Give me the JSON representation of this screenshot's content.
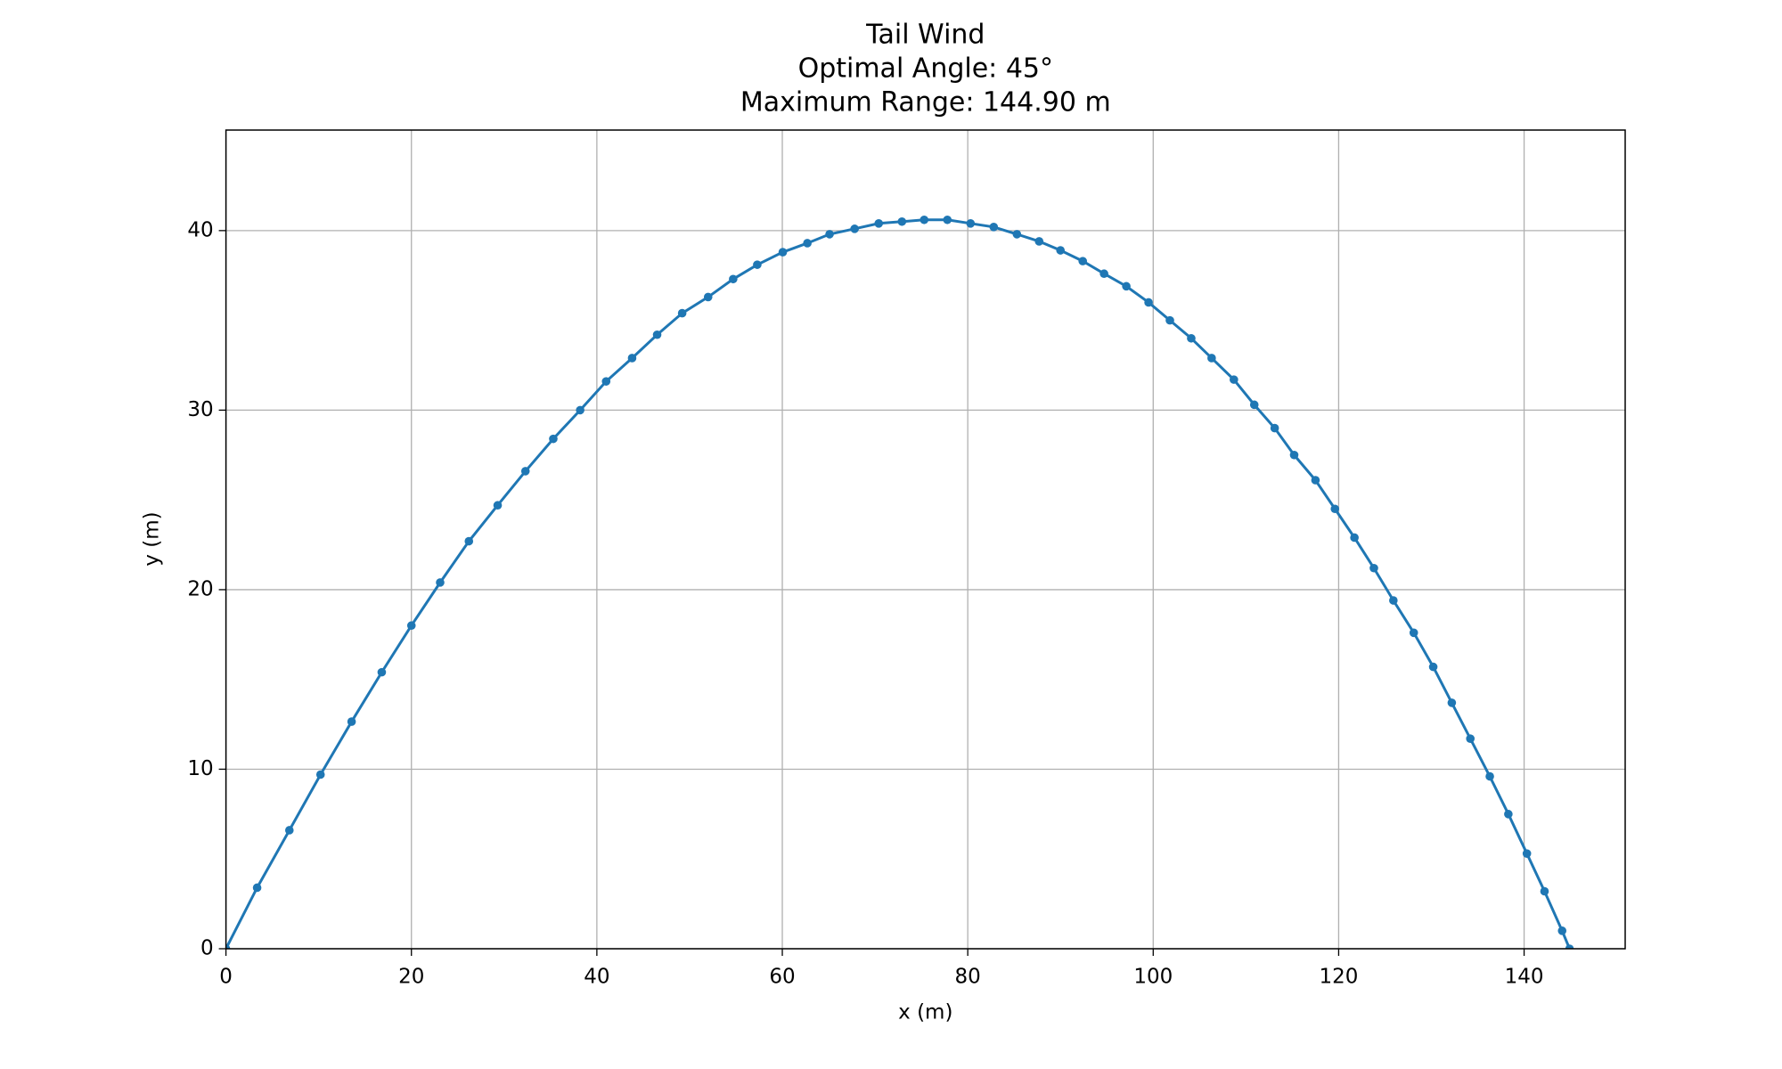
{
  "chart_data": {
    "type": "line",
    "title": [
      "Tail Wind",
      "Optimal Angle: 45°",
      "Maximum Range: 144.90 m"
    ],
    "x_label": "x (m)",
    "y_label": "y (m)",
    "x": [
      0,
      3.36,
      6.84,
      10.2,
      13.55,
      16.8,
      20.0,
      23.1,
      26.2,
      29.3,
      32.3,
      35.3,
      38.2,
      41.0,
      43.8,
      46.5,
      49.2,
      52.0,
      54.7,
      57.3,
      60.05,
      62.7,
      65.1,
      67.8,
      70.4,
      72.9,
      75.3,
      77.8,
      80.3,
      82.8,
      85.3,
      87.7,
      90.0,
      92.4,
      94.7,
      97.1,
      99.5,
      101.8,
      104.1,
      106.3,
      108.7,
      110.9,
      113.1,
      115.2,
      117.5,
      119.6,
      121.7,
      123.8,
      125.9,
      128.1,
      130.2,
      132.2,
      134.2,
      136.3,
      138.3,
      140.3,
      142.2,
      144.1,
      144.9
    ],
    "series": [
      {
        "color": "#1f77b4",
        "values": [
          0,
          3.4,
          6.6,
          9.7,
          12.65,
          15.4,
          18.0,
          20.4,
          22.7,
          24.7,
          26.6,
          28.4,
          30.0,
          31.6,
          32.9,
          34.2,
          35.4,
          36.3,
          37.3,
          38.1,
          38.8,
          39.3,
          39.8,
          40.1,
          40.4,
          40.5,
          40.6,
          40.6,
          40.4,
          40.2,
          39.8,
          39.4,
          38.9,
          38.3,
          37.6,
          36.9,
          36.0,
          35.0,
          34.0,
          32.9,
          31.7,
          30.3,
          29.0,
          27.5,
          26.1,
          24.5,
          22.9,
          21.2,
          19.4,
          17.6,
          15.7,
          13.7,
          11.7,
          9.6,
          7.5,
          5.3,
          3.2,
          1.0,
          0
        ]
      }
    ],
    "xlim": [
      0,
      150.9
    ],
    "ylim": [
      0,
      45.6
    ],
    "xticks": [
      0,
      20,
      40,
      60,
      80,
      100,
      120,
      140
    ],
    "yticks": [
      0,
      10,
      20,
      30,
      40
    ],
    "grid": true,
    "markers": true
  }
}
